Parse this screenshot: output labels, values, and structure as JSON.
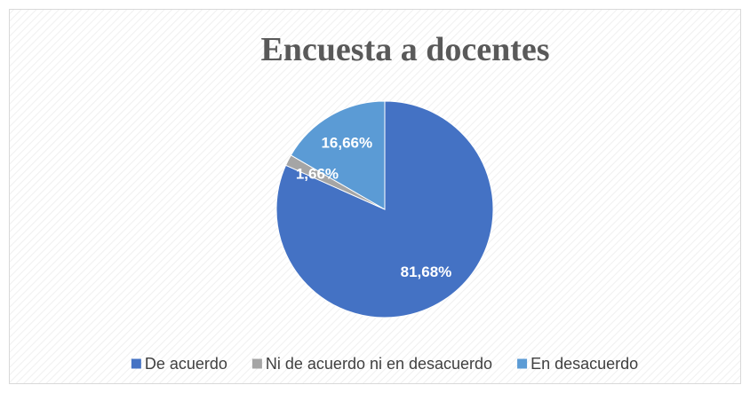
{
  "chart_data": {
    "type": "pie",
    "title": "Encuesta a docentes",
    "categories": [
      "De acuerdo",
      "Ni de acuerdo ni en desacuerdo",
      "En desacuerdo"
    ],
    "values": [
      81.68,
      1.66,
      16.66
    ],
    "value_labels": [
      "81,68%",
      "1,66%",
      "16,66%"
    ],
    "colors": [
      "#4472c4",
      "#a5a5a5",
      "#5b9bd5"
    ],
    "legend": "bottom"
  }
}
